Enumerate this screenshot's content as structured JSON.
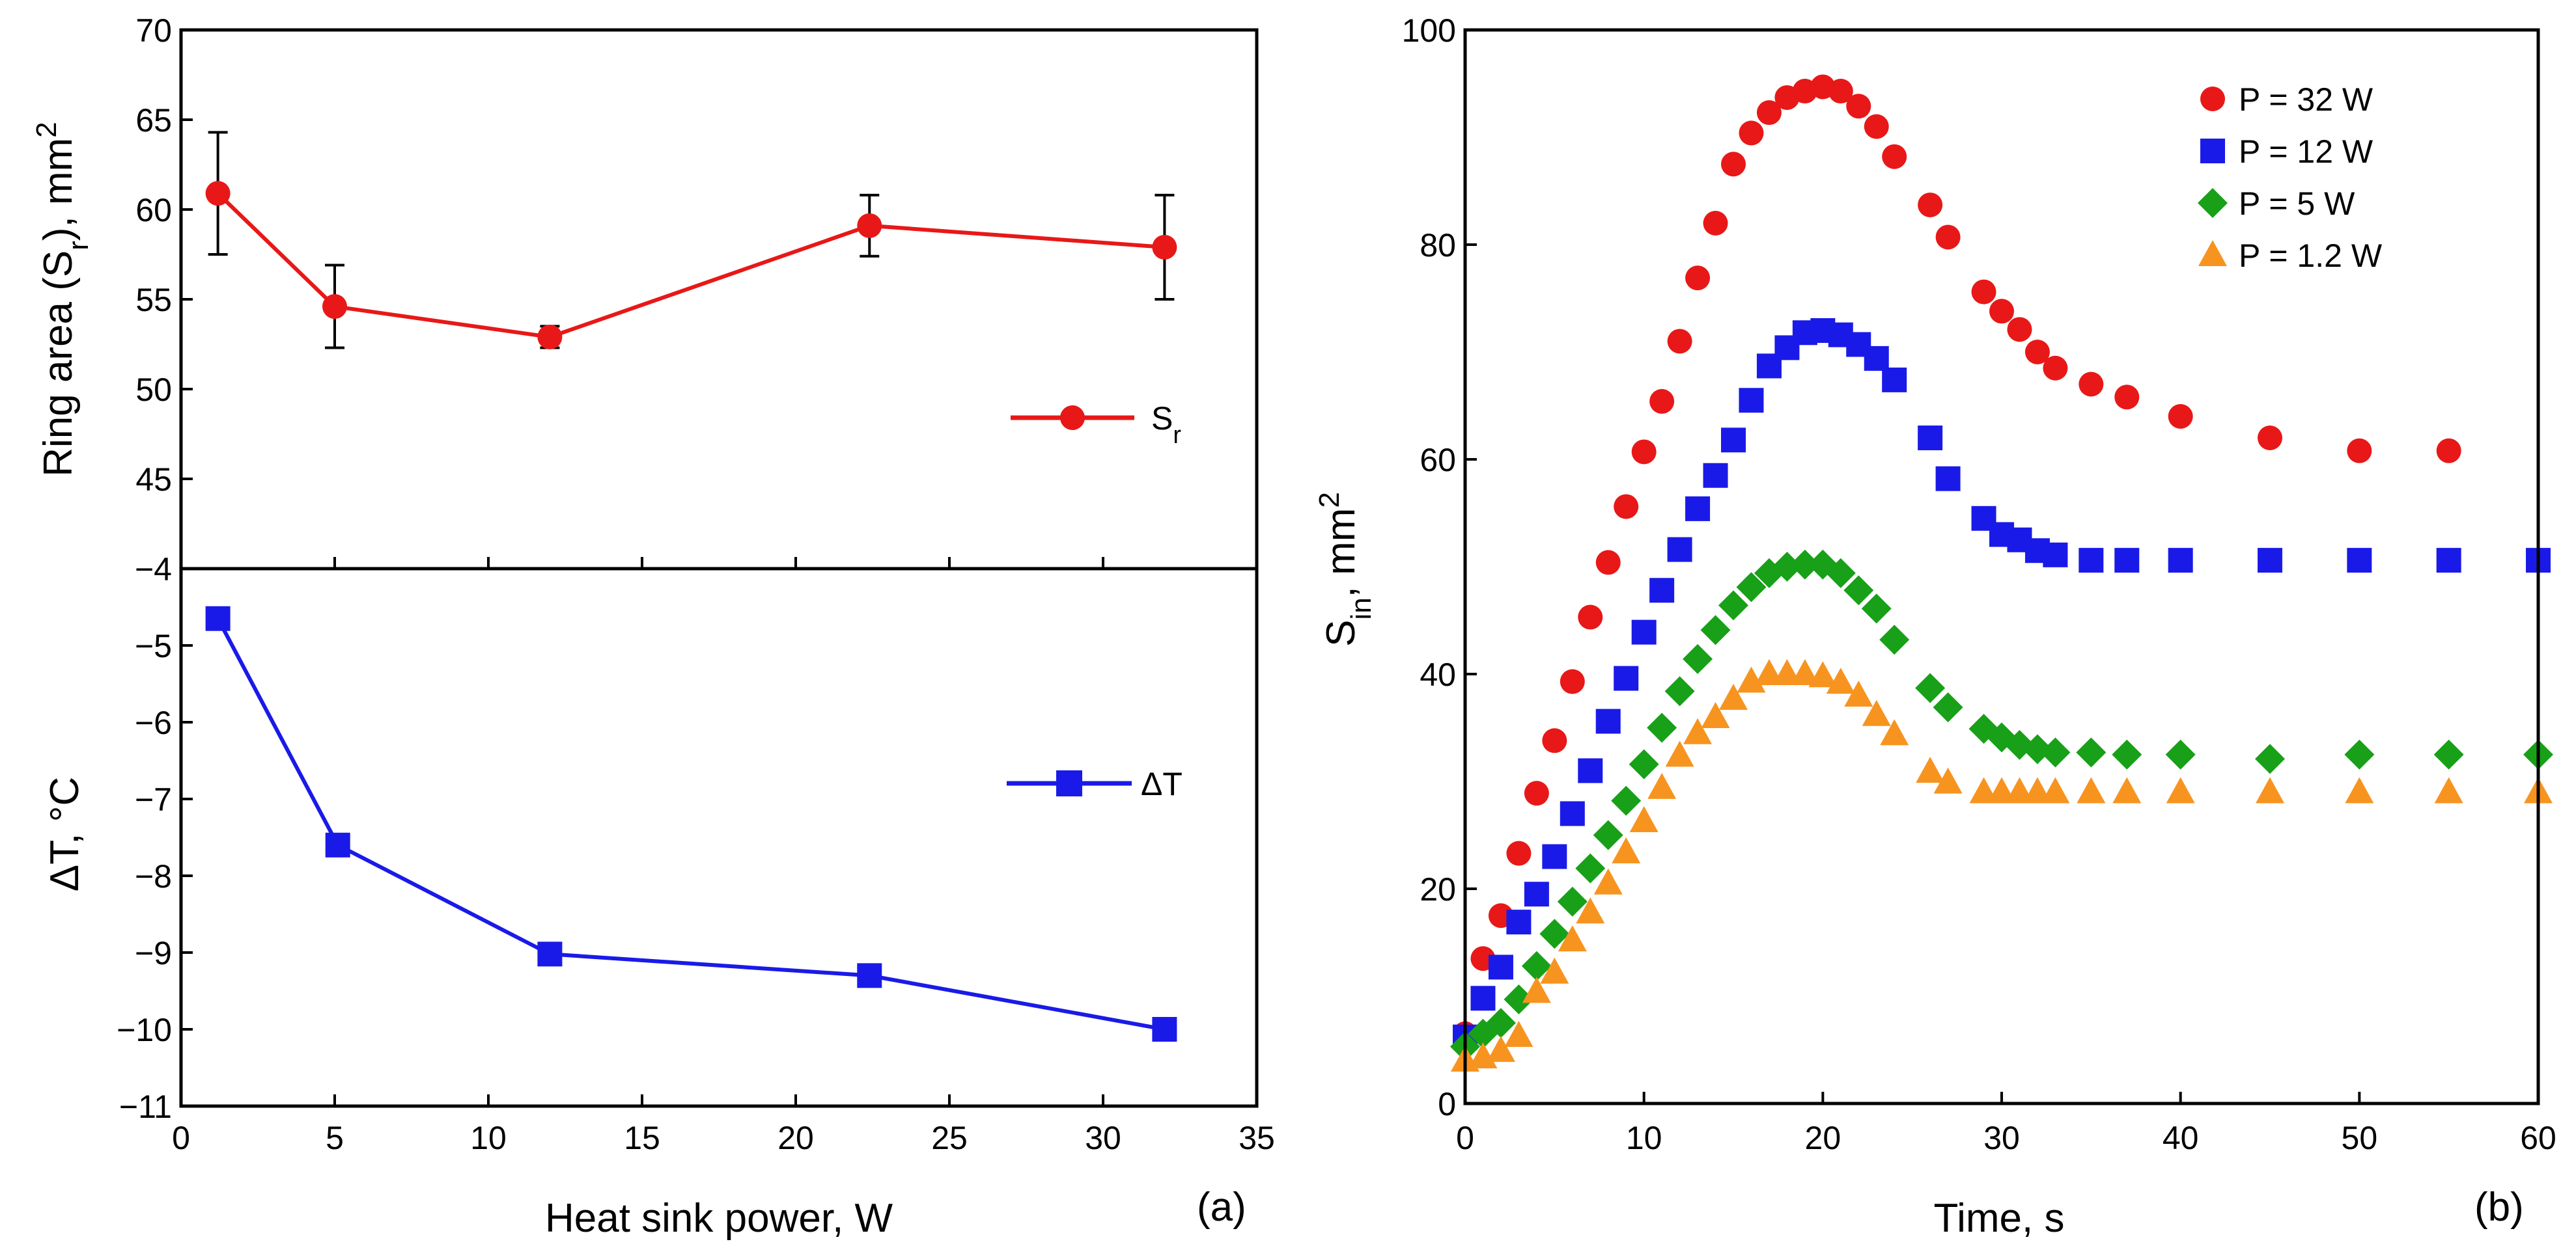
{
  "chart_data": [
    {
      "id": "a_top",
      "type": "line",
      "series": [
        {
          "name": "S_r",
          "legend": {
            "main": "S",
            "sub": "r"
          },
          "color": "#e81818",
          "marker": "circle",
          "x": [
            1.2,
            5,
            12,
            22.4,
            32
          ],
          "y": [
            60.9,
            54.6,
            52.9,
            59.1,
            57.9
          ],
          "yerr": [
            3.4,
            2.3,
            0.6,
            1.7,
            2.9
          ]
        }
      ],
      "xlim": [
        0,
        35
      ],
      "ylim": [
        40,
        70
      ],
      "yticks": [
        45,
        50,
        55,
        60,
        65,
        70
      ],
      "ylabel": {
        "main": "Ring area (S",
        "sub": "r",
        "end": "), mm",
        "sup": "2"
      },
      "legend_position": "right-middle"
    },
    {
      "id": "a_bottom",
      "type": "line",
      "series": [
        {
          "name": "ΔT",
          "legend": {
            "main": "ΔT"
          },
          "color": "#1a1ae8",
          "marker": "square",
          "x": [
            1.2,
            5.1,
            12,
            22.4,
            32
          ],
          "y": [
            -4.65,
            -7.6,
            -9.02,
            -9.3,
            -10.0
          ]
        }
      ],
      "xlim": [
        0,
        35
      ],
      "ylim": [
        -11,
        -4
      ],
      "xticks": [
        0,
        5,
        10,
        15,
        20,
        25,
        30,
        35
      ],
      "yticks": [
        -4,
        -5,
        -6,
        -7,
        -8,
        -9,
        -10,
        -11
      ],
      "ytick_labels": [
        "−4",
        "−5",
        "−6",
        "−7",
        "−8",
        "−9",
        "−10",
        "−11"
      ],
      "xlabel": "Heat sink power, W",
      "ylabel": {
        "main": "ΔT, °C"
      },
      "panel_label": "(a)",
      "legend_position": "right-middle"
    },
    {
      "id": "b",
      "type": "scatter",
      "series": [
        {
          "name": "P = 32 W",
          "color": "#e81818",
          "marker": "circle",
          "x": [
            0,
            1,
            2,
            3,
            4,
            5,
            6,
            7,
            8,
            9,
            10,
            11,
            12,
            13,
            14,
            15,
            16,
            17,
            18,
            19,
            20,
            21,
            22,
            23,
            24,
            26,
            27,
            29,
            30,
            31,
            32,
            33,
            35,
            37,
            40,
            45,
            50,
            55
          ],
          "y": [
            6.5,
            13.5,
            17.5,
            23.3,
            28.9,
            33.8,
            39.3,
            45.3,
            50.4,
            55.6,
            60.7,
            65.4,
            71,
            76.9,
            82,
            87.5,
            90.4,
            92.3,
            93.7,
            94.3,
            94.7,
            94.3,
            92.9,
            91,
            88.2,
            83.7,
            80.7,
            75.6,
            73.8,
            72.1,
            70,
            68.5,
            67,
            65.8,
            64,
            62,
            60.8,
            60.8
          ]
        },
        {
          "name": "P = 12 W",
          "color": "#1a1ae8",
          "marker": "square",
          "x": [
            0,
            1,
            2,
            3,
            4,
            5,
            6,
            7,
            8,
            9,
            10,
            11,
            12,
            13,
            14,
            15,
            16,
            17,
            18,
            19,
            20,
            21,
            22,
            23,
            24,
            26,
            27,
            29,
            30,
            31,
            32,
            33,
            35,
            37,
            40,
            45,
            50,
            55,
            60
          ],
          "y": [
            6.2,
            9.8,
            12.7,
            16.9,
            19.5,
            23,
            27,
            31,
            35.6,
            39.6,
            43.9,
            47.8,
            51.6,
            55.4,
            58.5,
            61.8,
            65.5,
            68.7,
            70.4,
            71.8,
            72,
            71.6,
            70.7,
            69.4,
            67.4,
            62,
            58.2,
            54.5,
            53,
            52.5,
            51.5,
            51.1,
            50.6,
            50.6,
            50.6,
            50.6,
            50.6,
            50.6,
            50.6
          ]
        },
        {
          "name": "P = 5 W",
          "color": "#18a018",
          "marker": "diamond",
          "x": [
            0,
            1,
            2,
            3,
            4,
            5,
            6,
            7,
            8,
            9,
            10,
            11,
            12,
            13,
            14,
            15,
            16,
            17,
            18,
            19,
            20,
            21,
            22,
            23,
            24,
            26,
            27,
            29,
            30,
            31,
            32,
            33,
            35,
            37,
            40,
            45,
            50,
            55,
            60
          ],
          "y": [
            5.3,
            6.5,
            7.5,
            9.7,
            12.8,
            15.8,
            18.8,
            21.9,
            25,
            28.2,
            31.6,
            35,
            38.4,
            41.4,
            44.1,
            46.4,
            48.1,
            49.4,
            50,
            50.2,
            50.2,
            49.4,
            47.8,
            46.1,
            43.2,
            38.7,
            36.9,
            34.9,
            34.1,
            33.4,
            33,
            32.7,
            32.7,
            32.5,
            32.5,
            32.1,
            32.5,
            32.5,
            32.5
          ]
        },
        {
          "name": "P = 1.2 W",
          "color": "#f79420",
          "marker": "triangle",
          "x": [
            0,
            1,
            2,
            3,
            4,
            5,
            6,
            7,
            8,
            9,
            10,
            11,
            12,
            13,
            14,
            15,
            16,
            17,
            18,
            19,
            20,
            21,
            22,
            23,
            24,
            26,
            27,
            29,
            30,
            31,
            32,
            33,
            35,
            37,
            40,
            45,
            50,
            55,
            60
          ],
          "y": [
            4,
            4.3,
            4.9,
            6.3,
            10.4,
            12.2,
            15.2,
            17.8,
            20.5,
            23.4,
            26.3,
            29.4,
            32.4,
            34.5,
            36,
            37.7,
            39.3,
            40,
            40,
            40,
            39.8,
            39.2,
            38,
            36.2,
            34.4,
            30.9,
            29.9,
            29,
            29,
            29,
            29,
            29,
            29,
            29,
            29,
            29,
            29,
            29,
            29
          ]
        }
      ],
      "xlim": [
        0,
        60
      ],
      "ylim": [
        0,
        100
      ],
      "xticks": [
        0,
        10,
        20,
        30,
        40,
        50,
        60
      ],
      "yticks": [
        0,
        20,
        40,
        60,
        80,
        100
      ],
      "xlabel": "Time, s",
      "ylabel": {
        "main": "S",
        "sub": "in",
        "end": ",  mm",
        "sup": "2"
      },
      "panel_label": "(b)",
      "legend_position": "top-right"
    }
  ]
}
